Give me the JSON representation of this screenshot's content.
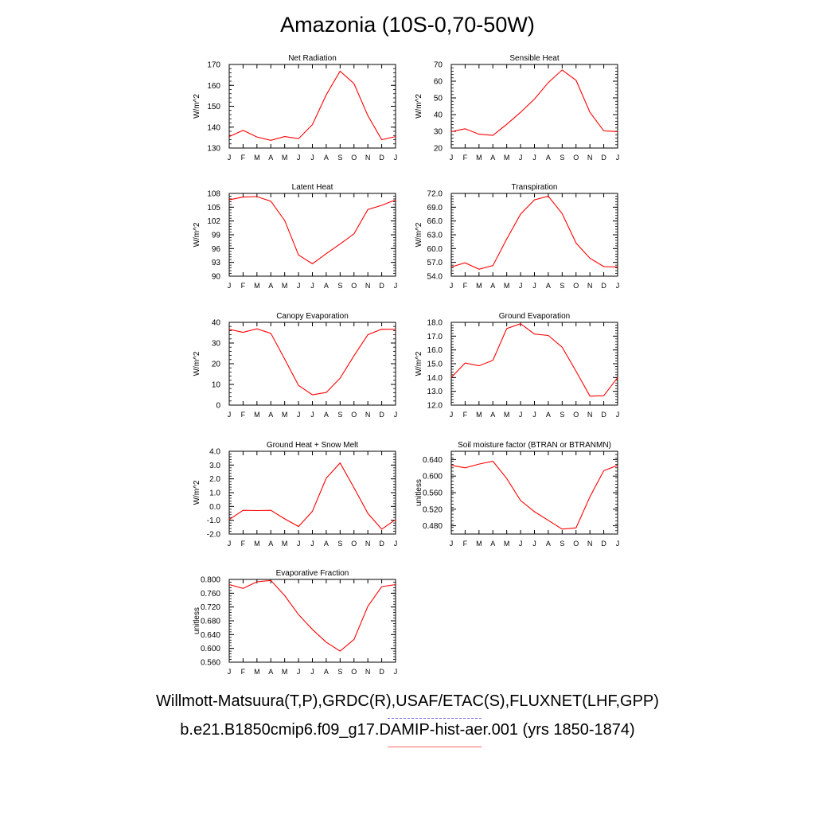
{
  "page": {
    "title": "Amazonia (10S-0,70-50W)",
    "legend": {
      "obs_label": "Willmott-Matsuura(T,P),GRDC(R),USAF/ETAC(S),FLUXNET(LHF,GPP)",
      "obs_color": "#4b4bdc",
      "model_label": "b.e21.B1850cmip6.f09_g17.DAMIP-hist-aer.001 (yrs 1850-1874)",
      "model_color": "#ff0000"
    }
  },
  "chart_data": [
    {
      "type": "line",
      "title": "Net Radiation",
      "ylabel": "W/m^2",
      "x": [
        "J",
        "F",
        "M",
        "A",
        "M",
        "J",
        "J",
        "A",
        "S",
        "O",
        "N",
        "D",
        "J"
      ],
      "ylim": [
        130,
        170
      ],
      "yticks": [
        130,
        140,
        150,
        160,
        170
      ],
      "ytick_labels": [
        "130",
        "140",
        "150",
        "160",
        "170"
      ],
      "series": [
        {
          "values": [
            135.5,
            138.5,
            135.3,
            133.7,
            135.5,
            134.5,
            141.2,
            155.5,
            166.8,
            160.8,
            145.5,
            134.0,
            135.5
          ]
        }
      ]
    },
    {
      "type": "line",
      "title": "Sensible Heat",
      "ylabel": "W/m^2",
      "x": [
        "J",
        "F",
        "M",
        "A",
        "M",
        "J",
        "J",
        "A",
        "S",
        "O",
        "N",
        "D",
        "J"
      ],
      "ylim": [
        20,
        70
      ],
      "yticks": [
        20,
        30,
        40,
        50,
        60,
        70
      ],
      "ytick_labels": [
        "20",
        "30",
        "40",
        "50",
        "60",
        "70"
      ],
      "series": [
        {
          "values": [
            29.8,
            31.5,
            28.3,
            27.6,
            34.2,
            41.4,
            49.3,
            59.2,
            66.7,
            60.5,
            41.4,
            30.3,
            29.8
          ]
        }
      ]
    },
    {
      "type": "line",
      "title": "Latent Heat",
      "ylabel": "W/m^2",
      "x": [
        "J",
        "F",
        "M",
        "A",
        "M",
        "J",
        "J",
        "A",
        "S",
        "O",
        "N",
        "D",
        "J"
      ],
      "ylim": [
        90,
        108
      ],
      "yticks": [
        90,
        93,
        96,
        99,
        102,
        105,
        108
      ],
      "ytick_labels": [
        "90",
        "93",
        "96",
        "99",
        "102",
        "105",
        "108"
      ],
      "series": [
        {
          "values": [
            106.6,
            107.2,
            107.3,
            106.3,
            102.1,
            94.6,
            92.7,
            94.9,
            97.0,
            99.2,
            104.5,
            105.4,
            106.6
          ]
        }
      ]
    },
    {
      "type": "line",
      "title": "Transpiration",
      "ylabel": "W/m^2",
      "x": [
        "J",
        "F",
        "M",
        "A",
        "M",
        "J",
        "J",
        "A",
        "S",
        "O",
        "N",
        "D",
        "J"
      ],
      "ylim": [
        54,
        72
      ],
      "yticks": [
        54,
        57,
        60,
        63,
        66,
        69,
        72
      ],
      "ytick_labels": [
        "54.0",
        "57.0",
        "60.0",
        "63.0",
        "66.0",
        "69.0",
        "72.0"
      ],
      "series": [
        {
          "values": [
            56.0,
            56.9,
            55.5,
            56.3,
            62.1,
            67.5,
            70.6,
            71.4,
            67.6,
            61.2,
            57.9,
            56.1,
            56.0
          ]
        }
      ]
    },
    {
      "type": "line",
      "title": "Canopy Evaporation",
      "ylabel": "W/m^2",
      "x": [
        "J",
        "F",
        "M",
        "A",
        "M",
        "J",
        "J",
        "A",
        "S",
        "O",
        "N",
        "D",
        "J"
      ],
      "ylim": [
        0,
        40
      ],
      "yticks": [
        0,
        10,
        20,
        30,
        40
      ],
      "ytick_labels": [
        "0",
        "10",
        "20",
        "30",
        "40"
      ],
      "series": [
        {
          "values": [
            36.6,
            35.2,
            36.9,
            34.7,
            22.2,
            9.5,
            5.0,
            6.1,
            13.0,
            23.9,
            34.0,
            36.7,
            36.6
          ]
        }
      ]
    },
    {
      "type": "line",
      "title": "Ground Evaporation",
      "ylabel": "W/m^2",
      "x": [
        "J",
        "F",
        "M",
        "A",
        "M",
        "J",
        "J",
        "A",
        "S",
        "O",
        "N",
        "D",
        "J"
      ],
      "ylim": [
        12,
        18
      ],
      "yticks": [
        12,
        13,
        14,
        15,
        16,
        17,
        18
      ],
      "ytick_labels": [
        "12.0",
        "13.0",
        "14.0",
        "15.0",
        "16.0",
        "17.0",
        "18.0"
      ],
      "series": [
        {
          "values": [
            14.0,
            15.05,
            14.85,
            15.25,
            17.55,
            17.9,
            17.15,
            17.05,
            16.2,
            14.45,
            12.65,
            12.68,
            14.0
          ]
        }
      ]
    },
    {
      "type": "line",
      "title": "Ground Heat + Snow Melt",
      "ylabel": "W/m^2",
      "x": [
        "J",
        "F",
        "M",
        "A",
        "M",
        "J",
        "J",
        "A",
        "S",
        "O",
        "N",
        "D",
        "J"
      ],
      "ylim": [
        -2,
        4
      ],
      "yticks": [
        -2,
        -1,
        0,
        1,
        2,
        3,
        4
      ],
      "ytick_labels": [
        "-2.0",
        "-1.0",
        "0.0",
        "1.0",
        "2.0",
        "3.0",
        "4.0"
      ],
      "series": [
        {
          "values": [
            -0.95,
            -0.28,
            -0.3,
            -0.28,
            -0.9,
            -1.45,
            -0.35,
            2.05,
            3.15,
            1.35,
            -0.5,
            -1.65,
            -0.95
          ]
        }
      ]
    },
    {
      "type": "line",
      "title": "Soil moisture factor (BTRAN or BTRANMN)",
      "ylabel": "unitless",
      "x": [
        "J",
        "F",
        "M",
        "A",
        "M",
        "J",
        "J",
        "A",
        "S",
        "O",
        "N",
        "D",
        "J"
      ],
      "ylim": [
        0.46,
        0.66
      ],
      "yticks": [
        0.48,
        0.52,
        0.56,
        0.6,
        0.64
      ],
      "ytick_labels": [
        "0.480",
        "0.520",
        "0.560",
        "0.600",
        "0.640"
      ],
      "series": [
        {
          "values": [
            0.626,
            0.62,
            0.629,
            0.636,
            0.594,
            0.541,
            0.514,
            0.493,
            0.472,
            0.475,
            0.55,
            0.613,
            0.626
          ]
        }
      ]
    },
    {
      "type": "line",
      "title": "Evaporative Fraction",
      "ylabel": "unitless",
      "x": [
        "J",
        "F",
        "M",
        "A",
        "M",
        "J",
        "J",
        "A",
        "S",
        "O",
        "N",
        "D",
        "J"
      ],
      "ylim": [
        0.56,
        0.8
      ],
      "yticks": [
        0.56,
        0.6,
        0.64,
        0.68,
        0.72,
        0.76,
        0.8
      ],
      "ytick_labels": [
        "0.560",
        "0.600",
        "0.640",
        "0.680",
        "0.720",
        "0.760",
        "0.800"
      ],
      "series": [
        {
          "values": [
            0.785,
            0.774,
            0.793,
            0.797,
            0.753,
            0.698,
            0.655,
            0.618,
            0.592,
            0.626,
            0.722,
            0.779,
            0.785
          ]
        }
      ]
    }
  ]
}
